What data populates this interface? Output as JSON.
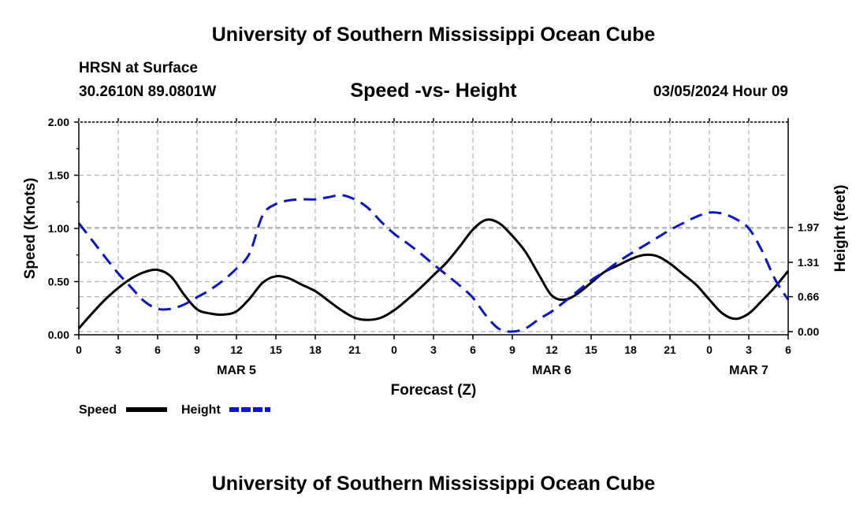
{
  "header": {
    "main_title": "University of Southern Mississippi Ocean Cube",
    "station_name": "HRSN at Surface",
    "station_coords": "30.2610N  89.0801W",
    "chart_title": "Speed -vs- Height",
    "date": "03/05/2024 Hour 09",
    "footer_title": "University of Southern Mississippi Ocean Cube"
  },
  "chart_data": {
    "type": "line",
    "title": "Speed -vs- Height",
    "xlabel": "Forecast (Z)",
    "ylabel_left": "Speed (Knots)",
    "ylabel_right": "Height (feet)",
    "x_hours_range": [
      0,
      54
    ],
    "x_tick_step_hours": 3,
    "x_tick_labels": [
      "0",
      "3",
      "6",
      "9",
      "12",
      "15",
      "18",
      "21",
      "0",
      "3",
      "6",
      "9",
      "12",
      "15",
      "18",
      "21",
      "0",
      "3",
      "6"
    ],
    "date_labels": [
      {
        "label": "MAR 5",
        "hour": 12
      },
      {
        "label": "MAR 6",
        "hour": 36
      },
      {
        "label": "MAR 7",
        "hour": 51
      }
    ],
    "y_left": {
      "range": [
        0,
        2
      ],
      "ticks": [
        0,
        0.5,
        1.0,
        1.5,
        2.0
      ],
      "tick_labels": [
        "0.00",
        "0.50",
        "1.00",
        "1.50",
        "2.00"
      ]
    },
    "y_right": {
      "range": [
        -0.06,
        3.96
      ],
      "ticks": [
        0,
        0.66,
        1.31,
        1.97
      ],
      "tick_labels": [
        "0.00",
        "0.66",
        "1.31",
        "1.97"
      ]
    },
    "grid": true,
    "legend_position": "bottom-left",
    "series": [
      {
        "name": "Speed",
        "axis": "left",
        "color": "#000000",
        "style": "solid",
        "x": [
          0,
          1,
          2,
          3,
          4,
          5,
          6,
          7,
          8,
          9,
          10,
          11,
          12,
          13,
          14,
          15,
          16,
          17,
          18,
          19,
          20,
          21,
          22,
          23,
          24,
          25,
          26,
          27,
          28,
          29,
          30,
          31,
          32,
          33,
          34,
          35,
          36,
          37,
          38,
          39,
          40,
          41,
          42,
          43,
          44,
          45,
          46,
          47,
          48,
          49,
          50,
          51,
          52,
          53,
          54
        ],
        "values": [
          0.06,
          0.2,
          0.33,
          0.44,
          0.53,
          0.59,
          0.61,
          0.55,
          0.38,
          0.24,
          0.2,
          0.19,
          0.22,
          0.34,
          0.49,
          0.55,
          0.53,
          0.47,
          0.41,
          0.32,
          0.23,
          0.16,
          0.14,
          0.16,
          0.23,
          0.33,
          0.44,
          0.56,
          0.68,
          0.83,
          0.99,
          1.08,
          1.05,
          0.93,
          0.78,
          0.57,
          0.37,
          0.33,
          0.39,
          0.49,
          0.59,
          0.65,
          0.71,
          0.75,
          0.74,
          0.67,
          0.57,
          0.47,
          0.33,
          0.2,
          0.15,
          0.2,
          0.32,
          0.45,
          0.6
        ]
      },
      {
        "name": "Height",
        "axis": "right",
        "color": "#0a16c8",
        "style": "dashed",
        "x": [
          0,
          1,
          2,
          3,
          4,
          5,
          6,
          7,
          8,
          9,
          10,
          11,
          12,
          13,
          14,
          15,
          16,
          17,
          18,
          19,
          20,
          21,
          22,
          23,
          24,
          25,
          26,
          27,
          28,
          29,
          30,
          31,
          32,
          33,
          34,
          35,
          36,
          37,
          38,
          39,
          40,
          41,
          42,
          43,
          44,
          45,
          46,
          47,
          48,
          49,
          50,
          51,
          52,
          53,
          54
        ],
        "values": [
          2.05,
          1.73,
          1.41,
          1.1,
          0.83,
          0.57,
          0.43,
          0.43,
          0.51,
          0.65,
          0.79,
          0.97,
          1.19,
          1.48,
          2.2,
          2.41,
          2.48,
          2.5,
          2.5,
          2.54,
          2.58,
          2.5,
          2.34,
          2.08,
          1.85,
          1.67,
          1.48,
          1.27,
          1.07,
          0.87,
          0.64,
          0.3,
          0.05,
          0.0,
          0.06,
          0.23,
          0.38,
          0.57,
          0.77,
          0.97,
          1.13,
          1.31,
          1.47,
          1.62,
          1.77,
          1.92,
          2.05,
          2.17,
          2.25,
          2.23,
          2.13,
          1.95,
          1.53,
          0.99,
          0.6
        ]
      }
    ]
  }
}
